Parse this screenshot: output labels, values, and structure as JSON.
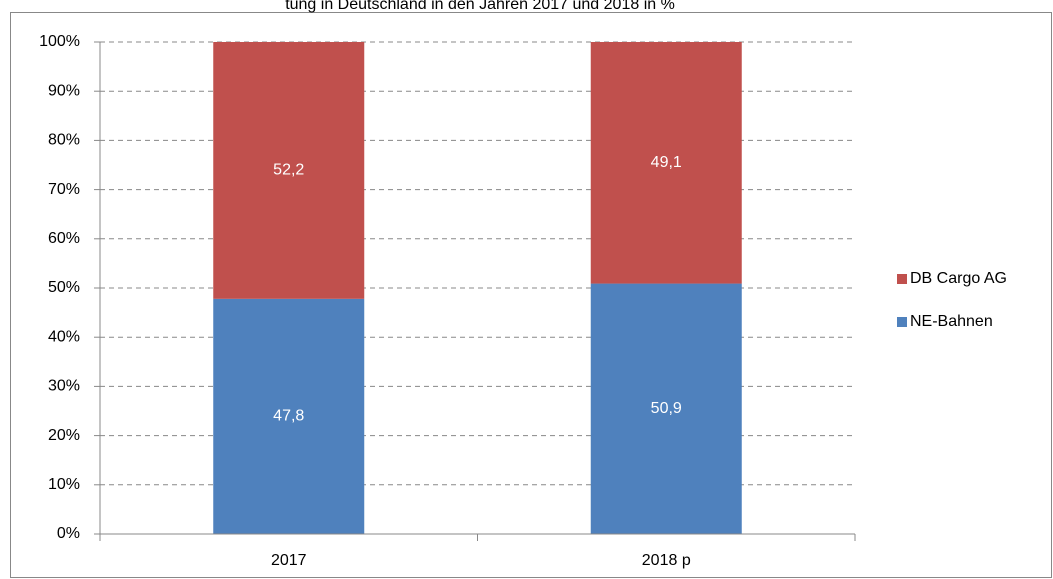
{
  "chart_data": {
    "type": "stacked_bar",
    "title": "tung in Deutschland in den Jahren 2017 und 2018 in %",
    "categories": [
      "2017",
      "2018 p"
    ],
    "series": [
      {
        "name": "NE-Bahnen",
        "color": "#4f81bd",
        "values": [
          47.8,
          50.9
        ],
        "value_labels": [
          "47,8",
          "50,9"
        ]
      },
      {
        "name": "DB Cargo AG",
        "color": "#c0504d",
        "values": [
          52.2,
          49.1
        ],
        "value_labels": [
          "52,2",
          "49,1"
        ]
      }
    ],
    "ylim": [
      0,
      100
    ],
    "yticks": [
      {
        "value": 0,
        "label": "0%"
      },
      {
        "value": 10,
        "label": "10%"
      },
      {
        "value": 20,
        "label": "20%"
      },
      {
        "value": 30,
        "label": "30%"
      },
      {
        "value": 40,
        "label": "40%"
      },
      {
        "value": 50,
        "label": "50%"
      },
      {
        "value": 60,
        "label": "60%"
      },
      {
        "value": 70,
        "label": "70%"
      },
      {
        "value": 80,
        "label": "80%"
      },
      {
        "value": 90,
        "label": "90%"
      },
      {
        "value": 100,
        "label": "100%"
      }
    ],
    "grid": true,
    "legend": "right"
  }
}
